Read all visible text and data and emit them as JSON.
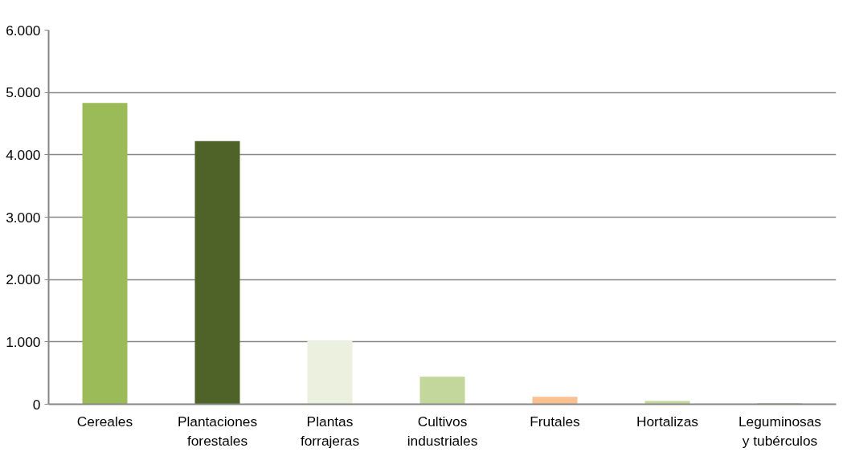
{
  "chart_data": {
    "type": "bar",
    "categories": [
      "Cereales",
      "Plantaciones forestales",
      "Plantas forrajeras",
      "Cultivos industriales",
      "Frutales",
      "Hortalizas",
      "Leguminosas y tubérculos"
    ],
    "values": [
      4830,
      4220,
      1020,
      440,
      120,
      50,
      20
    ],
    "colors": [
      "#9bbb59",
      "#4f6228",
      "#ebf1de",
      "#c3d69b",
      "#fac090",
      "#c3d69b",
      "#c3d69b"
    ],
    "ylim": [
      0,
      6000
    ],
    "yticks": [
      {
        "value": 0,
        "label": "0"
      },
      {
        "value": 1000,
        "label": "1.000"
      },
      {
        "value": 2000,
        "label": "2.000"
      },
      {
        "value": 3000,
        "label": "3.000"
      },
      {
        "value": 4000,
        "label": "4.000"
      },
      {
        "value": 5000,
        "label": "5.000"
      },
      {
        "value": 6000,
        "label": "6.000"
      }
    ],
    "grid": "y"
  }
}
